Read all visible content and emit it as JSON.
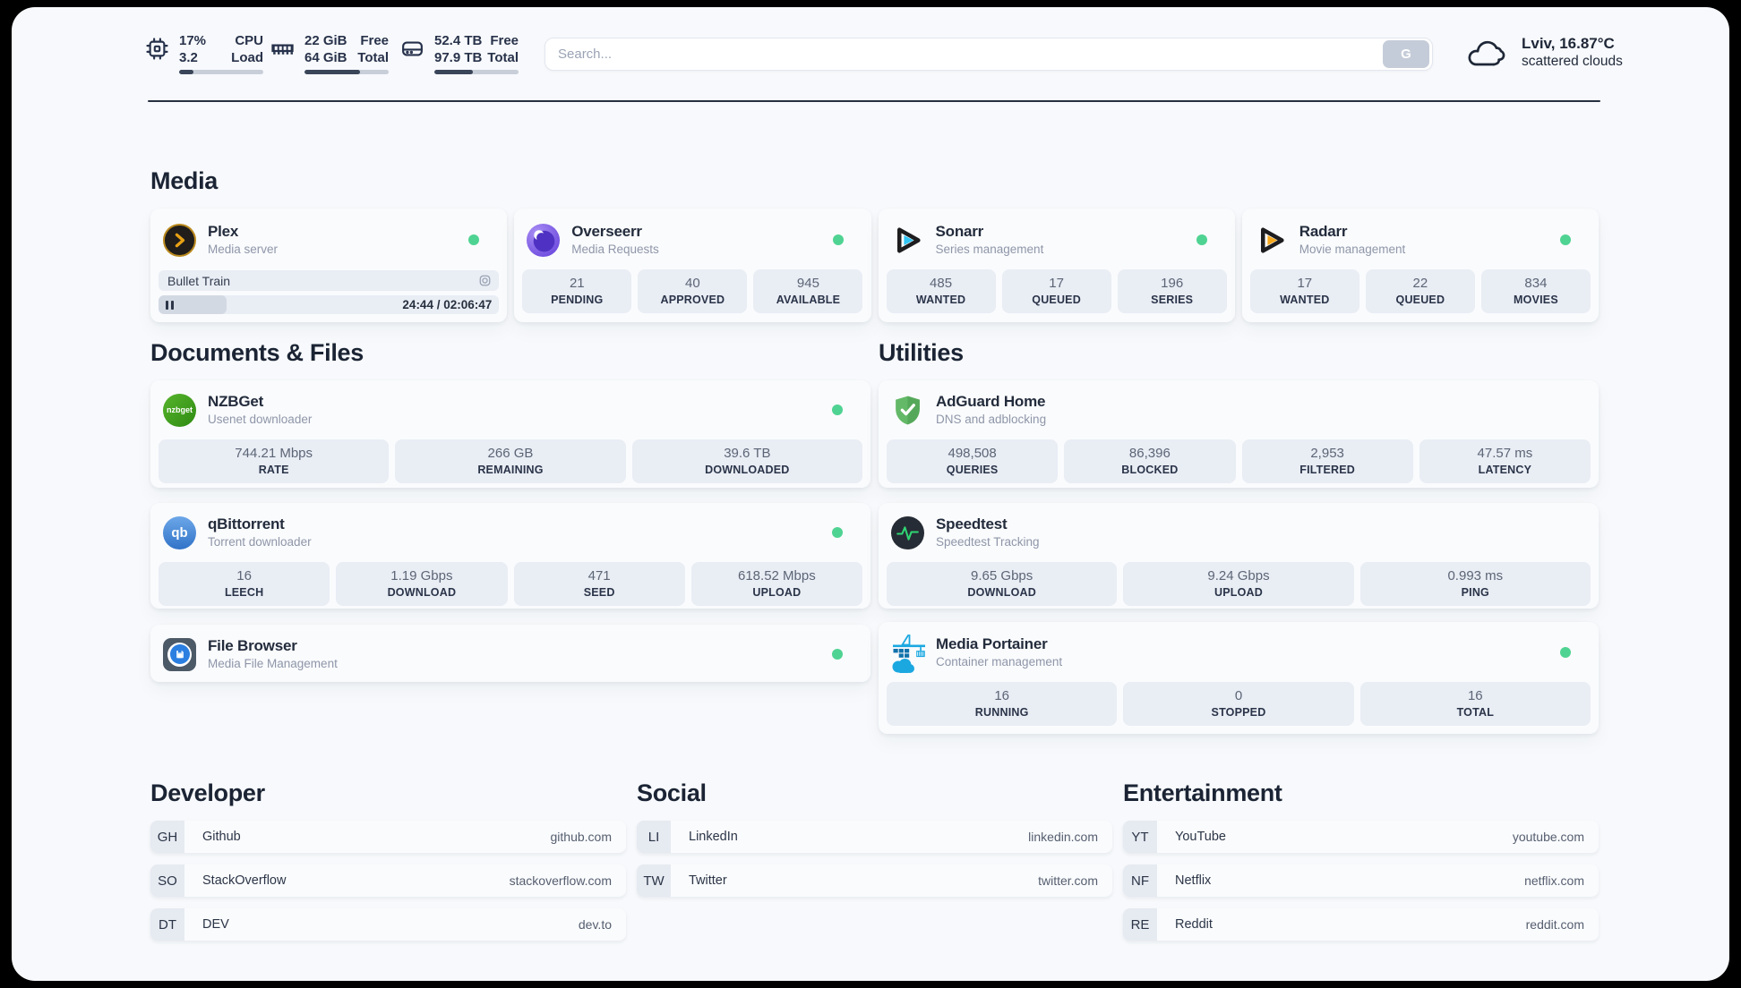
{
  "topbar": {
    "cpu": {
      "usage": "17%",
      "load": "3.2",
      "label_top": "CPU",
      "label_bottom": "Load",
      "bar_percent": 17
    },
    "memory": {
      "free": "22 GiB",
      "total": "64 GiB",
      "label_top": "Free",
      "label_bottom": "Total",
      "bar_percent": 66
    },
    "disk": {
      "free": "52.4 TB",
      "total": "97.9 TB",
      "label_top": "Free",
      "label_bottom": "Total",
      "bar_percent": 46
    },
    "search": {
      "placeholder": "Search...",
      "button_label": "G"
    },
    "weather": {
      "location": "Lviv, 16.87°C",
      "condition": "scattered clouds"
    }
  },
  "sections": {
    "media": "Media",
    "documents": "Documents & Files",
    "utilities": "Utilities",
    "developer": "Developer",
    "social": "Social",
    "entertainment": "Entertainment"
  },
  "apps": {
    "plex": {
      "name": "Plex",
      "description": "Media server",
      "now_playing": "Bullet Train",
      "time": "24:44 / 02:06:47",
      "progress_percent": 20
    },
    "overseerr": {
      "name": "Overseerr",
      "description": "Media Requests",
      "stats": [
        {
          "value": "21",
          "label": "PENDING"
        },
        {
          "value": "40",
          "label": "APPROVED"
        },
        {
          "value": "945",
          "label": "AVAILABLE"
        }
      ]
    },
    "sonarr": {
      "name": "Sonarr",
      "description": "Series management",
      "stats": [
        {
          "value": "485",
          "label": "WANTED"
        },
        {
          "value": "17",
          "label": "QUEUED"
        },
        {
          "value": "196",
          "label": "SERIES"
        }
      ]
    },
    "radarr": {
      "name": "Radarr",
      "description": "Movie management",
      "stats": [
        {
          "value": "17",
          "label": "WANTED"
        },
        {
          "value": "22",
          "label": "QUEUED"
        },
        {
          "value": "834",
          "label": "MOVIES"
        }
      ]
    },
    "nzbget": {
      "name": "NZBGet",
      "description": "Usenet downloader",
      "icon_text": "nzbget",
      "stats": [
        {
          "value": "744.21 Mbps",
          "label": "RATE"
        },
        {
          "value": "266 GB",
          "label": "REMAINING"
        },
        {
          "value": "39.6 TB",
          "label": "DOWNLOADED"
        }
      ]
    },
    "qbittorrent": {
      "name": "qBittorrent",
      "description": "Torrent downloader",
      "icon_text": "qb",
      "stats": [
        {
          "value": "16",
          "label": "LEECH"
        },
        {
          "value": "1.19 Gbps",
          "label": "DOWNLOAD"
        },
        {
          "value": "471",
          "label": "SEED"
        },
        {
          "value": "618.52 Mbps",
          "label": "UPLOAD"
        }
      ]
    },
    "filebrowser": {
      "name": "File Browser",
      "description": "Media File Management"
    },
    "adguard": {
      "name": "AdGuard Home",
      "description": "DNS and adblocking",
      "stats": [
        {
          "value": "498,508",
          "label": "QUERIES"
        },
        {
          "value": "86,396",
          "label": "BLOCKED"
        },
        {
          "value": "2,953",
          "label": "FILTERED"
        },
        {
          "value": "47.57 ms",
          "label": "LATENCY"
        }
      ]
    },
    "speedtest": {
      "name": "Speedtest",
      "description": "Speedtest Tracking",
      "stats": [
        {
          "value": "9.65 Gbps",
          "label": "DOWNLOAD"
        },
        {
          "value": "9.24 Gbps",
          "label": "UPLOAD"
        },
        {
          "value": "0.993 ms",
          "label": "PING"
        }
      ]
    },
    "portainer": {
      "name": "Media Portainer",
      "description": "Container management",
      "stats": [
        {
          "value": "16",
          "label": "RUNNING"
        },
        {
          "value": "0",
          "label": "STOPPED"
        },
        {
          "value": "16",
          "label": "TOTAL"
        }
      ]
    }
  },
  "bookmarks": {
    "developer": [
      {
        "abbr": "GH",
        "name": "Github",
        "domain": "github.com"
      },
      {
        "abbr": "SO",
        "name": "StackOverflow",
        "domain": "stackoverflow.com"
      },
      {
        "abbr": "DT",
        "name": "DEV",
        "domain": "dev.to"
      }
    ],
    "social": [
      {
        "abbr": "LI",
        "name": "LinkedIn",
        "domain": "linkedin.com"
      },
      {
        "abbr": "TW",
        "name": "Twitter",
        "domain": "twitter.com"
      }
    ],
    "entertainment": [
      {
        "abbr": "YT",
        "name": "YouTube",
        "domain": "youtube.com"
      },
      {
        "abbr": "NF",
        "name": "Netflix",
        "domain": "netflix.com"
      },
      {
        "abbr": "RE",
        "name": "Reddit",
        "domain": "reddit.com"
      }
    ]
  }
}
